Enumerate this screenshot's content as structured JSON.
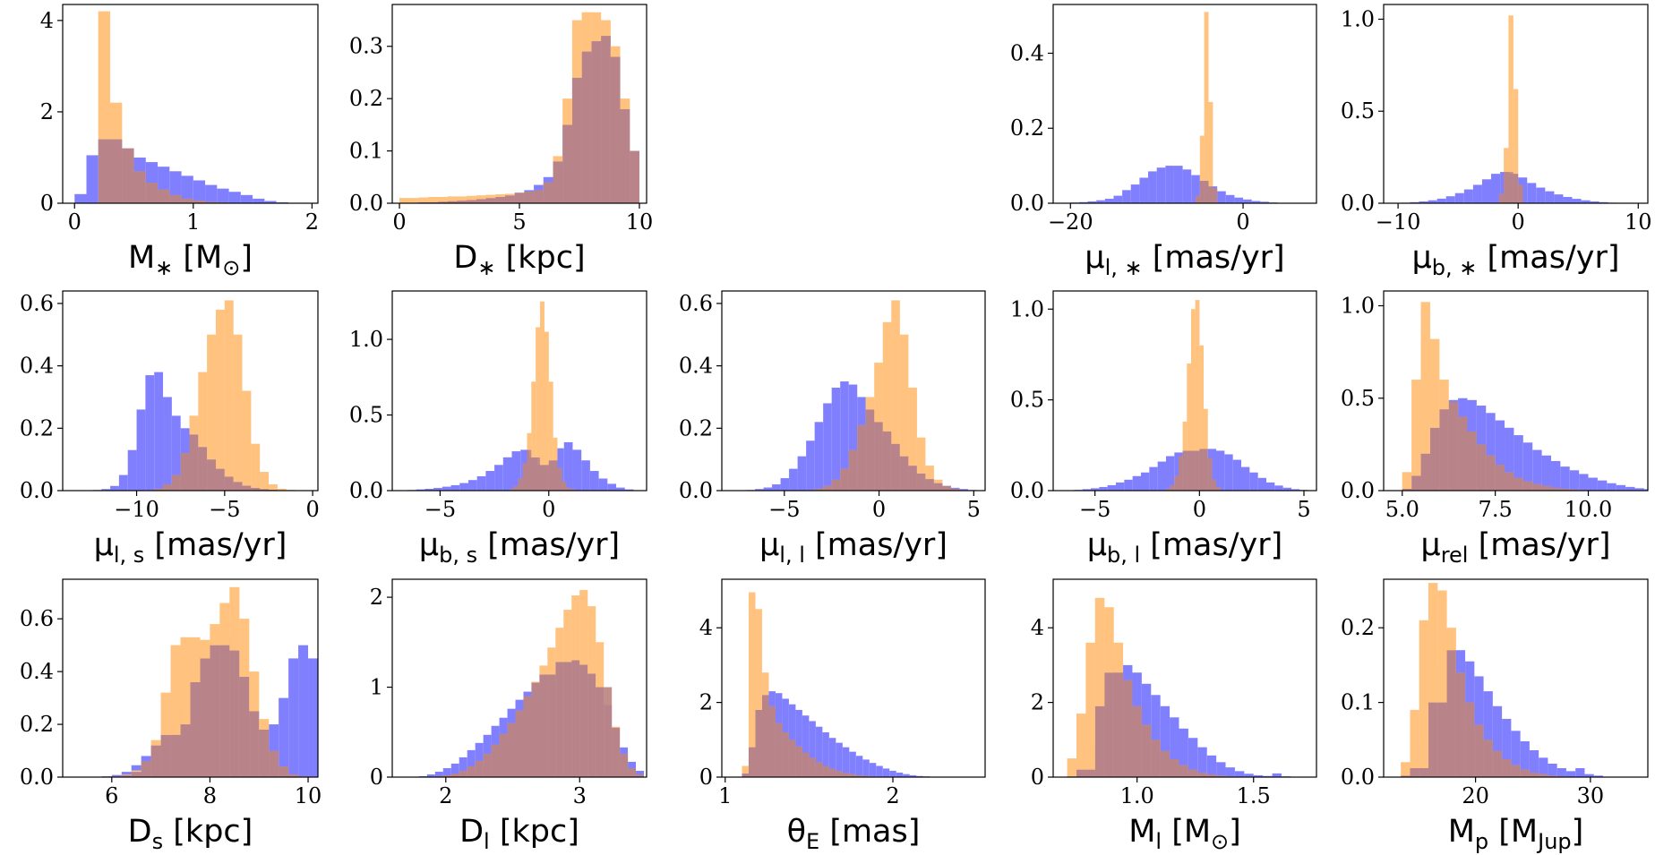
{
  "colors": {
    "prior": "#8080ff",
    "posterior": "#ffc27f",
    "overlap": "#b67f7f"
  },
  "chart_data": [
    {
      "type": "bar",
      "xlabel": {
        "base": "M",
        "sub": "∗",
        "rest": " [M",
        "sub2": "⊙",
        "end": "]"
      },
      "xlim": [
        -0.1,
        2.05
      ],
      "ylim": [
        0,
        4.35
      ],
      "xticks": [
        0,
        1,
        2
      ],
      "yticks": [
        0,
        2,
        4
      ],
      "bins": {
        "start": 0.0,
        "width": 0.1
      },
      "prior": [
        0.2,
        1.05,
        1.4,
        1.4,
        1.2,
        1.0,
        0.9,
        0.8,
        0.7,
        0.6,
        0.5,
        0.4,
        0.32,
        0.25,
        0.18,
        0.1,
        0.05,
        0.02,
        0.01,
        0.0
      ],
      "posterior": [
        0,
        0,
        4.2,
        2.2,
        1.2,
        0.7,
        0.45,
        0.3,
        0.18,
        0.1,
        0.06,
        0.03,
        0.02,
        0.01,
        0,
        0,
        0,
        0,
        0,
        0
      ]
    },
    {
      "type": "bar",
      "xlabel": {
        "base": "D",
        "sub": "∗",
        "rest": " [kpc]"
      },
      "xlim": [
        -0.3,
        10.3
      ],
      "ylim": [
        0,
        0.38
      ],
      "xticks": [
        0,
        5,
        10
      ],
      "yticks": [
        0.0,
        0.1,
        0.2,
        0.3
      ],
      "bins": {
        "start": 0.0,
        "width": 0.4
      },
      "prior": [
        0.001,
        0.001,
        0.002,
        0.002,
        0.003,
        0.004,
        0.005,
        0.006,
        0.008,
        0.01,
        0.012,
        0.015,
        0.02,
        0.025,
        0.035,
        0.05,
        0.08,
        0.15,
        0.24,
        0.29,
        0.31,
        0.32,
        0.28,
        0.18,
        0.1
      ],
      "posterior": [
        0.01,
        0.01,
        0.011,
        0.012,
        0.012,
        0.013,
        0.013,
        0.014,
        0.015,
        0.016,
        0.017,
        0.018,
        0.02,
        0.022,
        0.025,
        0.04,
        0.09,
        0.2,
        0.35,
        0.365,
        0.365,
        0.35,
        0.3,
        0.2,
        0.1
      ]
    },
    null,
    {
      "type": "bar",
      "xlabel": {
        "base": "μ",
        "sub": "l, ∗",
        "rest": " [mas/yr]"
      },
      "xlim": [
        -22,
        8.5
      ],
      "ylim": [
        0,
        0.53
      ],
      "xticks": [
        -20,
        0
      ],
      "yticks": [
        0.0,
        0.2,
        0.4
      ],
      "bins": {
        "start": -21,
        "width": 1.0
      },
      "prior": [
        0.001,
        0.002,
        0.003,
        0.005,
        0.008,
        0.012,
        0.02,
        0.035,
        0.05,
        0.068,
        0.085,
        0.095,
        0.1,
        0.1,
        0.09,
        0.075,
        0.06,
        0.045,
        0.032,
        0.022,
        0.015,
        0.01,
        0.006,
        0.004,
        0.002,
        0.001,
        0.001,
        0.0
      ],
      "posterior": [
        0,
        0,
        0,
        0,
        0,
        0,
        0,
        0,
        0,
        0,
        0,
        0,
        0,
        0,
        0,
        0.02,
        0.3,
        0.51,
        0.27,
        0.04,
        0.01,
        0.005,
        0,
        0,
        0,
        0,
        0,
        0
      ],
      "posterior_fine": {
        "start": -5.5,
        "width": 0.5,
        "values": [
          0.02,
          0.18,
          0.51,
          0.27,
          0.04
        ]
      }
    },
    {
      "type": "bar",
      "xlabel": {
        "base": "μ",
        "sub": "b, ∗",
        "rest": " [mas/yr]"
      },
      "xlim": [
        -11.2,
        10.8
      ],
      "ylim": [
        0,
        1.08
      ],
      "xticks": [
        -10,
        0,
        10
      ],
      "yticks": [
        0.0,
        0.5,
        1.0
      ],
      "bins": {
        "start": -10.5,
        "width": 0.75
      },
      "prior": [
        0.001,
        0.003,
        0.006,
        0.01,
        0.016,
        0.025,
        0.038,
        0.055,
        0.075,
        0.1,
        0.13,
        0.16,
        0.17,
        0.16,
        0.14,
        0.11,
        0.085,
        0.065,
        0.048,
        0.034,
        0.024,
        0.016,
        0.01,
        0.006,
        0.003,
        0.002,
        0.001,
        0.0
      ],
      "posterior": [
        0,
        0,
        0,
        0,
        0,
        0,
        0,
        0,
        0,
        0,
        0,
        0,
        0,
        0,
        0,
        0,
        0,
        0,
        0,
        0,
        0,
        0,
        0,
        0,
        0,
        0,
        0,
        0
      ],
      "posterior_fine": {
        "start": -1.6,
        "width": 0.4,
        "values": [
          0.05,
          0.3,
          1.02,
          0.62,
          0.1
        ]
      }
    },
    {
      "type": "bar",
      "xlabel": {
        "base": "μ",
        "sub": "l, s",
        "rest": " [mas/yr]"
      },
      "xlim": [
        -14.2,
        0.3
      ],
      "ylim": [
        0,
        0.64
      ],
      "xticks": [
        -10,
        -5,
        0
      ],
      "yticks": [
        0.0,
        0.2,
        0.4,
        0.6
      ],
      "bins": {
        "start": -12.5,
        "width": 0.5
      },
      "prior": [
        0.002,
        0.005,
        0.015,
        0.05,
        0.13,
        0.26,
        0.37,
        0.38,
        0.3,
        0.24,
        0.2,
        0.18,
        0.14,
        0.1,
        0.07,
        0.045,
        0.028,
        0.016,
        0.009,
        0.005,
        0.003,
        0.001,
        0.0,
        0.0
      ],
      "posterior": [
        0,
        0,
        0,
        0,
        0,
        0.001,
        0.002,
        0.006,
        0.02,
        0.05,
        0.12,
        0.24,
        0.38,
        0.5,
        0.58,
        0.61,
        0.5,
        0.32,
        0.15,
        0.06,
        0.02,
        0.006,
        0.002,
        0.0
      ]
    },
    {
      "type": "bar",
      "xlabel": {
        "base": "μ",
        "sub": "b, s",
        "rest": " [mas/yr]"
      },
      "xlim": [
        -7.2,
        4.5
      ],
      "ylim": [
        0,
        1.32
      ],
      "xticks": [
        -5,
        0
      ],
      "yticks": [
        0.0,
        0.5,
        1.0
      ],
      "bins": {
        "start": -6.5,
        "width": 0.4
      },
      "prior": [
        0.004,
        0.008,
        0.012,
        0.018,
        0.026,
        0.036,
        0.05,
        0.07,
        0.095,
        0.13,
        0.17,
        0.22,
        0.26,
        0.27,
        0.22,
        0.17,
        0.2,
        0.28,
        0.32,
        0.27,
        0.2,
        0.13,
        0.08,
        0.045,
        0.02,
        0.008,
        0.003
      ],
      "posterior": [
        0,
        0,
        0,
        0,
        0,
        0,
        0,
        0,
        0,
        0,
        0,
        0,
        0,
        0,
        0,
        0,
        0,
        0,
        0,
        0,
        0,
        0,
        0,
        0,
        0,
        0,
        0
      ],
      "posterior_fine": {
        "start": -1.8,
        "width": 0.2,
        "values": [
          0.01,
          0.03,
          0.08,
          0.18,
          0.38,
          0.72,
          1.08,
          1.25,
          1.05,
          0.72,
          0.35,
          0.15,
          0.06,
          0.02,
          0.01
        ]
      }
    },
    {
      "type": "bar",
      "xlabel": {
        "base": "μ",
        "sub": "l, l",
        "rest": " [mas/yr]"
      },
      "xlim": [
        -8.3,
        5.6
      ],
      "ylim": [
        0,
        0.64
      ],
      "xticks": [
        -5,
        0,
        5
      ],
      "yticks": [
        0.0,
        0.2,
        0.4,
        0.6
      ],
      "bins": {
        "start": -7.0,
        "width": 0.45
      },
      "prior": [
        0.002,
        0.005,
        0.01,
        0.02,
        0.04,
        0.07,
        0.11,
        0.16,
        0.22,
        0.28,
        0.33,
        0.35,
        0.34,
        0.3,
        0.26,
        0.22,
        0.19,
        0.15,
        0.11,
        0.08,
        0.055,
        0.037,
        0.024,
        0.015,
        0.009,
        0.005,
        0.002,
        0.001,
        0.0
      ],
      "posterior": [
        0,
        0,
        0,
        0,
        0,
        0,
        0,
        0.002,
        0.006,
        0.015,
        0.035,
        0.07,
        0.13,
        0.21,
        0.3,
        0.41,
        0.54,
        0.61,
        0.5,
        0.33,
        0.17,
        0.08,
        0.035,
        0.015,
        0.006,
        0.002,
        0.001,
        0.0,
        0.0
      ]
    },
    {
      "type": "bar",
      "xlabel": {
        "base": "μ",
        "sub": "b, l",
        "rest": " [mas/yr]"
      },
      "xlim": [
        -7.0,
        5.6
      ],
      "ylim": [
        0,
        1.1
      ],
      "xticks": [
        -5,
        0,
        5
      ],
      "yticks": [
        0.0,
        0.5,
        1.0
      ],
      "bins": {
        "start": -6.0,
        "width": 0.4
      },
      "prior": [
        0.004,
        0.008,
        0.013,
        0.02,
        0.03,
        0.045,
        0.06,
        0.08,
        0.1,
        0.13,
        0.16,
        0.19,
        0.21,
        0.22,
        0.22,
        0.23,
        0.23,
        0.22,
        0.2,
        0.17,
        0.13,
        0.1,
        0.07,
        0.045,
        0.028,
        0.016,
        0.008,
        0.004,
        0.002
      ],
      "posterior": [
        0,
        0,
        0,
        0,
        0,
        0,
        0,
        0,
        0,
        0,
        0,
        0,
        0,
        0,
        0,
        0,
        0,
        0,
        0,
        0,
        0,
        0,
        0,
        0,
        0,
        0,
        0,
        0,
        0
      ],
      "posterior_fine": {
        "start": -1.6,
        "width": 0.2,
        "values": [
          0.01,
          0.03,
          0.08,
          0.19,
          0.38,
          0.7,
          1.0,
          1.05,
          0.8,
          0.45,
          0.18,
          0.06,
          0.02
        ]
      }
    },
    {
      "type": "bar",
      "xlabel": {
        "base": "μ",
        "sub": "rel",
        "rest": " [mas/yr]"
      },
      "xlim": [
        4.5,
        11.6
      ],
      "ylim": [
        0,
        1.08
      ],
      "xticks": [
        5.0,
        7.5,
        10.0
      ],
      "yticks": [
        0.0,
        0.5,
        1.0
      ],
      "bins": {
        "start": 5.0,
        "width": 0.25
      },
      "prior": [
        0.01,
        0.08,
        0.2,
        0.34,
        0.44,
        0.49,
        0.5,
        0.49,
        0.46,
        0.42,
        0.38,
        0.34,
        0.3,
        0.26,
        0.22,
        0.19,
        0.16,
        0.13,
        0.11,
        0.09,
        0.07,
        0.055,
        0.04,
        0.03,
        0.02,
        0.013,
        0.008,
        0.004
      ],
      "posterior": [
        0.1,
        0.6,
        1.02,
        0.82,
        0.6,
        0.48,
        0.4,
        0.32,
        0.25,
        0.19,
        0.14,
        0.1,
        0.07,
        0.05,
        0.035,
        0.025,
        0.015,
        0.01,
        0.006,
        0.004,
        0.002,
        0.001,
        0,
        0,
        0,
        0,
        0,
        0
      ]
    },
    {
      "type": "bar",
      "xlabel": {
        "base": "D",
        "sub": "s",
        "rest": " [kpc]"
      },
      "xlim": [
        5.0,
        10.2
      ],
      "ylim": [
        0,
        0.75
      ],
      "xticks": [
        6,
        8,
        10
      ],
      "yticks": [
        0.0,
        0.2,
        0.4,
        0.6
      ],
      "bins": {
        "start": 5.6,
        "width": 0.2
      },
      "prior": [
        0.001,
        0.003,
        0.008,
        0.02,
        0.045,
        0.08,
        0.12,
        0.16,
        0.2,
        0.26,
        0.36,
        0.45,
        0.5,
        0.53,
        0.48,
        0.38,
        0.25,
        0.18,
        0.2,
        0.3,
        0.45,
        0.5,
        0.45,
        0.32,
        0.15
      ],
      "posterior": [
        0,
        0.001,
        0.003,
        0.01,
        0.025,
        0.06,
        0.14,
        0.32,
        0.5,
        0.53,
        0.53,
        0.52,
        0.58,
        0.66,
        0.72,
        0.6,
        0.4,
        0.22,
        0.1,
        0.04,
        0.01,
        0.003,
        0.001,
        0,
        0
      ]
    },
    {
      "type": "bar",
      "xlabel": {
        "base": "D",
        "sub": "l",
        "rest": " [kpc]"
      },
      "xlim": [
        1.6,
        3.5
      ],
      "ylim": [
        0,
        2.2
      ],
      "xticks": [
        2,
        3
      ],
      "yticks": [
        0,
        1,
        2
      ],
      "bins": {
        "start": 1.8,
        "width": 0.06
      },
      "prior": [
        0.01,
        0.03,
        0.06,
        0.1,
        0.15,
        0.22,
        0.3,
        0.38,
        0.47,
        0.57,
        0.66,
        0.76,
        0.86,
        0.95,
        1.05,
        1.14,
        1.22,
        1.28,
        1.3,
        1.3,
        1.25,
        1.15,
        1.0,
        0.8,
        0.55,
        0.33,
        0.17,
        0.07
      ],
      "posterior": [
        0,
        0.005,
        0.01,
        0.02,
        0.04,
        0.07,
        0.12,
        0.18,
        0.26,
        0.36,
        0.48,
        0.6,
        0.74,
        0.9,
        1.06,
        1.24,
        1.44,
        1.66,
        1.86,
        2.02,
        2.08,
        1.9,
        1.5,
        1.0,
        0.56,
        0.26,
        0.1,
        0.03
      ]
    },
    {
      "type": "bar",
      "xlabel": {
        "base": "θ",
        "sub": "E",
        "rest": " [mas]"
      },
      "xlim": [
        0.98,
        2.55
      ],
      "ylim": [
        0,
        5.3
      ],
      "xticks": [
        1,
        2
      ],
      "yticks": [
        0,
        2,
        4
      ],
      "bins": {
        "start": 1.1,
        "width": 0.04
      },
      "prior": [
        0.1,
        0.8,
        1.8,
        2.2,
        2.3,
        2.25,
        2.1,
        1.95,
        1.8,
        1.65,
        1.5,
        1.35,
        1.2,
        1.05,
        0.92,
        0.8,
        0.68,
        0.57,
        0.47,
        0.38,
        0.3,
        0.23,
        0.17,
        0.12,
        0.08,
        0.05,
        0.03,
        0.02,
        0.01,
        0.005
      ],
      "posterior": [
        0.3,
        4.95,
        4.5,
        2.8,
        1.9,
        1.45,
        1.2,
        1.0,
        0.82,
        0.66,
        0.52,
        0.4,
        0.3,
        0.22,
        0.16,
        0.11,
        0.08,
        0.05,
        0.03,
        0.02,
        0.01,
        0.005,
        0,
        0,
        0,
        0,
        0,
        0,
        0,
        0
      ]
    },
    {
      "type": "bar",
      "xlabel": {
        "base": "M",
        "sub": "l",
        "rest": " [M",
        "sub2": "⊙",
        "end": "]"
      },
      "xlim": [
        0.64,
        1.77
      ],
      "ylim": [
        0,
        5.3
      ],
      "xticks": [
        1.0,
        1.5
      ],
      "yticks": [
        0,
        2,
        4
      ],
      "bins": {
        "start": 0.7,
        "width": 0.04
      },
      "prior": [
        0.02,
        0.2,
        0.8,
        1.9,
        2.8,
        3.1,
        3.0,
        2.8,
        2.5,
        2.2,
        1.9,
        1.6,
        1.3,
        1.05,
        0.8,
        0.58,
        0.4,
        0.26,
        0.16,
        0.09,
        0.05,
        0.03,
        0.1,
        0.02,
        0.01
      ],
      "posterior": [
        0.5,
        1.7,
        3.6,
        4.8,
        4.55,
        3.6,
        2.6,
        1.9,
        1.4,
        1.0,
        0.7,
        0.48,
        0.32,
        0.2,
        0.12,
        0.07,
        0.04,
        0.02,
        0.01,
        0.005,
        0,
        0,
        0,
        0,
        0
      ]
    },
    {
      "type": "bar",
      "xlabel": {
        "base": "M",
        "sub": "p",
        "rest": " [M",
        "sub2": "Jup",
        "end": "]"
      },
      "xlim": [
        12.0,
        35.0
      ],
      "ylim": [
        0,
        0.265
      ],
      "xticks": [
        20,
        30
      ],
      "yticks": [
        0.0,
        0.1,
        0.2
      ],
      "bins": {
        "start": 13.5,
        "width": 0.8
      },
      "prior": [
        0.002,
        0.012,
        0.045,
        0.1,
        0.145,
        0.17,
        0.17,
        0.155,
        0.135,
        0.115,
        0.095,
        0.078,
        0.062,
        0.048,
        0.036,
        0.026,
        0.018,
        0.012,
        0.008,
        0.012,
        0.004,
        0.002
      ],
      "posterior": [
        0.02,
        0.09,
        0.21,
        0.26,
        0.25,
        0.2,
        0.14,
        0.1,
        0.07,
        0.05,
        0.035,
        0.024,
        0.016,
        0.01,
        0.006,
        0.004,
        0.002,
        0.001,
        0,
        0,
        0,
        0
      ]
    }
  ]
}
